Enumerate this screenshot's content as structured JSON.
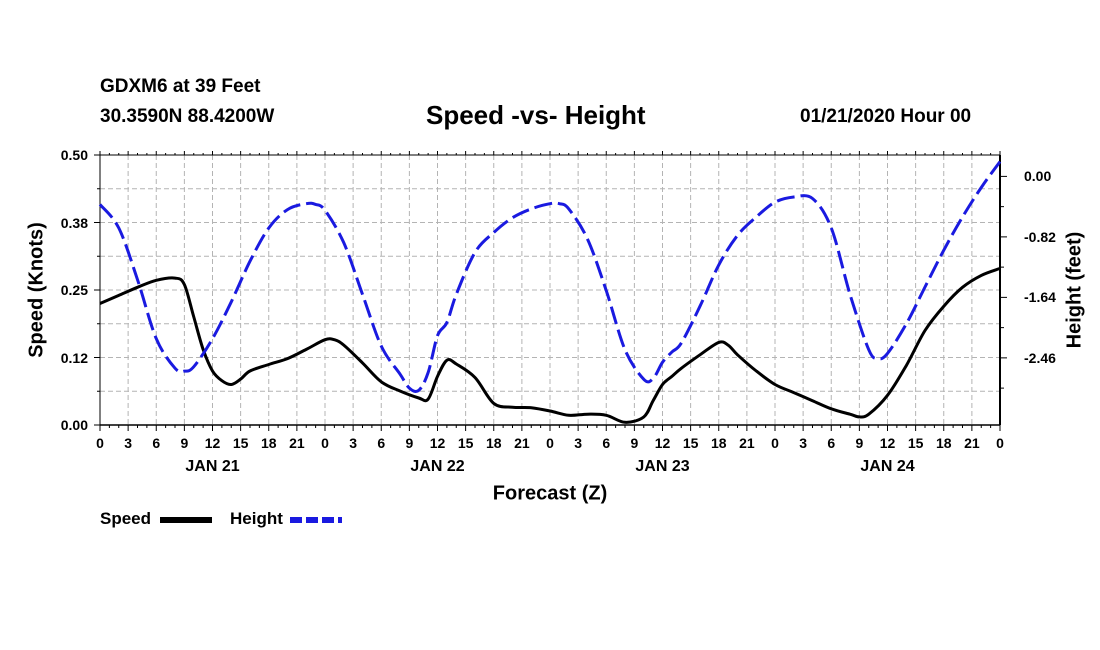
{
  "header": {
    "station": "GDXM6 at 39 Feet",
    "location": "30.3590N 88.4200W",
    "title": "Speed -vs- Height",
    "run": "01/21/2020 Hour 00"
  },
  "legend": {
    "speed_label": "Speed",
    "height_label": "Height"
  },
  "colors": {
    "speed": "#000000",
    "height": "#1a1ae0",
    "grid": "#b4b4b4"
  },
  "chart_data": {
    "type": "line",
    "title": "Speed -vs- Height",
    "xlabel": "Forecast (Z)",
    "ylabel": "Speed (Knots)",
    "y2label": "Height (feet)",
    "xlim": [
      0,
      96
    ],
    "ylim": [
      0,
      0.5
    ],
    "y2lim": [
      -3.37,
      0.29
    ],
    "x_tick_labels": [
      "0",
      "3",
      "6",
      "9",
      "12",
      "15",
      "18",
      "21",
      "0",
      "3",
      "6",
      "9",
      "12",
      "15",
      "18",
      "21",
      "0",
      "3",
      "6",
      "9",
      "12",
      "15",
      "18",
      "21",
      "0",
      "3",
      "6",
      "9",
      "12",
      "15",
      "18",
      "21",
      "0"
    ],
    "day_labels": [
      {
        "label": "JAN 21",
        "x": 12
      },
      {
        "label": "JAN 22",
        "x": 36
      },
      {
        "label": "JAN 23",
        "x": 60
      },
      {
        "label": "JAN 24",
        "x": 84
      }
    ],
    "y_ticks": [
      "0.00",
      "0.12",
      "0.25",
      "0.38",
      "0.50"
    ],
    "y_tick_values": [
      0,
      0.125,
      0.25,
      0.375,
      0.5
    ],
    "y2_ticks": [
      "0.00",
      "-0.82",
      "-1.64",
      "-2.46"
    ],
    "y2_tick_values": [
      0,
      -0.82,
      -1.64,
      -2.46
    ],
    "series": [
      {
        "name": "Speed",
        "axis": "left",
        "style": "solid",
        "x": [
          0,
          2,
          4,
          6,
          8,
          9,
          10,
          11,
          12,
          13,
          14,
          15,
          16,
          18,
          20,
          22,
          24,
          25,
          26,
          28,
          30,
          32,
          34,
          35,
          36,
          37,
          38,
          40,
          42,
          44,
          46,
          48,
          50,
          52,
          54,
          56,
          58,
          59,
          60,
          61,
          62,
          64,
          66,
          67,
          68,
          70,
          72,
          74,
          76,
          78,
          80,
          81,
          82,
          84,
          86,
          88,
          90,
          92,
          94,
          96
        ],
        "values": [
          0.225,
          0.24,
          0.255,
          0.268,
          0.272,
          0.26,
          0.2,
          0.14,
          0.1,
          0.082,
          0.075,
          0.085,
          0.1,
          0.112,
          0.123,
          0.14,
          0.158,
          0.158,
          0.148,
          0.115,
          0.08,
          0.063,
          0.05,
          0.048,
          0.09,
          0.12,
          0.113,
          0.088,
          0.04,
          0.033,
          0.032,
          0.026,
          0.018,
          0.02,
          0.018,
          0.005,
          0.015,
          0.045,
          0.075,
          0.09,
          0.105,
          0.13,
          0.153,
          0.148,
          0.13,
          0.1,
          0.075,
          0.06,
          0.045,
          0.03,
          0.02,
          0.015,
          0.02,
          0.055,
          0.11,
          0.175,
          0.22,
          0.255,
          0.277,
          0.29
        ]
      },
      {
        "name": "Height",
        "axis": "right",
        "style": "dashed",
        "x": [
          0,
          2,
          4,
          6,
          8,
          9,
          10,
          12,
          14,
          16,
          18,
          20,
          22,
          23,
          24,
          26,
          28,
          30,
          32,
          33,
          34,
          35,
          36,
          37,
          38,
          40,
          42,
          44,
          46,
          48,
          49,
          50,
          52,
          54,
          56,
          58,
          59,
          60,
          61,
          62,
          64,
          66,
          68,
          70,
          72,
          74,
          76,
          78,
          80,
          82,
          83,
          84,
          86,
          88,
          90,
          92,
          94,
          96
        ],
        "values": [
          -0.38,
          -0.7,
          -1.4,
          -2.2,
          -2.6,
          -2.64,
          -2.58,
          -2.2,
          -1.7,
          -1.15,
          -0.7,
          -0.45,
          -0.37,
          -0.38,
          -0.46,
          -0.9,
          -1.6,
          -2.3,
          -2.68,
          -2.87,
          -2.9,
          -2.66,
          -2.16,
          -1.98,
          -1.6,
          -1.03,
          -0.76,
          -0.56,
          -0.44,
          -0.37,
          -0.37,
          -0.44,
          -0.85,
          -1.55,
          -2.35,
          -2.75,
          -2.74,
          -2.52,
          -2.38,
          -2.26,
          -1.76,
          -1.2,
          -0.8,
          -0.55,
          -0.35,
          -0.28,
          -0.3,
          -0.7,
          -1.6,
          -2.35,
          -2.47,
          -2.4,
          -2.0,
          -1.5,
          -1.0,
          -0.55,
          -0.15,
          0.2
        ]
      }
    ]
  }
}
